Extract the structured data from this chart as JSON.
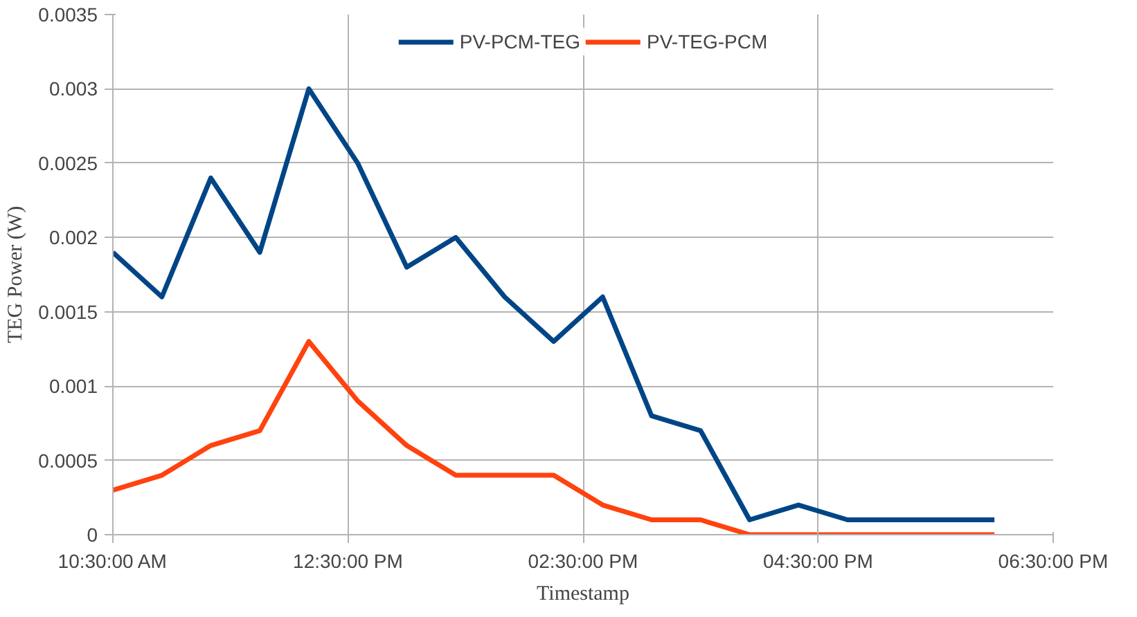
{
  "chart_data": {
    "type": "line",
    "xlabel": "Timestamp",
    "ylabel": "TEG Power (W)",
    "x": [
      10.5,
      10.917,
      11.333,
      11.75,
      12.167,
      12.583,
      13,
      13.417,
      13.833,
      14.25,
      14.667,
      15.083,
      15.5,
      15.917,
      16.333,
      16.75,
      17.167,
      17.583,
      18
    ],
    "series": [
      {
        "name": "PV-PCM-TEG",
        "color": "#004586",
        "values": [
          0.0019,
          0.0016,
          0.0024,
          0.0019,
          0.003,
          0.0025,
          0.0018,
          0.002,
          0.0016,
          0.0013,
          0.0016,
          0.0008,
          0.0007,
          0.0001,
          0.0002,
          0.0001,
          0.0001,
          0.0001,
          0.0001
        ]
      },
      {
        "name": "PV-TEG-PCM",
        "color": "#ff420e",
        "values": [
          0.0003,
          0.0004,
          0.0006,
          0.0007,
          0.0013,
          0.0009,
          0.0006,
          0.0004,
          0.0004,
          0.0004,
          0.0002,
          0.0001,
          0.0001,
          0,
          0,
          0,
          0,
          0,
          0
        ]
      }
    ],
    "xlim": [
      10.5,
      18.5
    ],
    "xticks": [
      {
        "value": 10.5,
        "label": "10:30:00 AM"
      },
      {
        "value": 12.5,
        "label": "12:30:00 PM"
      },
      {
        "value": 14.5,
        "label": "02:30:00 PM"
      },
      {
        "value": 16.5,
        "label": "04:30:00 PM"
      },
      {
        "value": 18.5,
        "label": "06:30:00 PM"
      }
    ],
    "ylim": [
      0,
      0.0035
    ],
    "yticks": [
      0,
      0.0005,
      0.001,
      0.0015,
      0.002,
      0.0025,
      0.003,
      0.0035
    ],
    "grid": true,
    "legend": "top",
    "marker": "none",
    "line_style": "solid"
  }
}
